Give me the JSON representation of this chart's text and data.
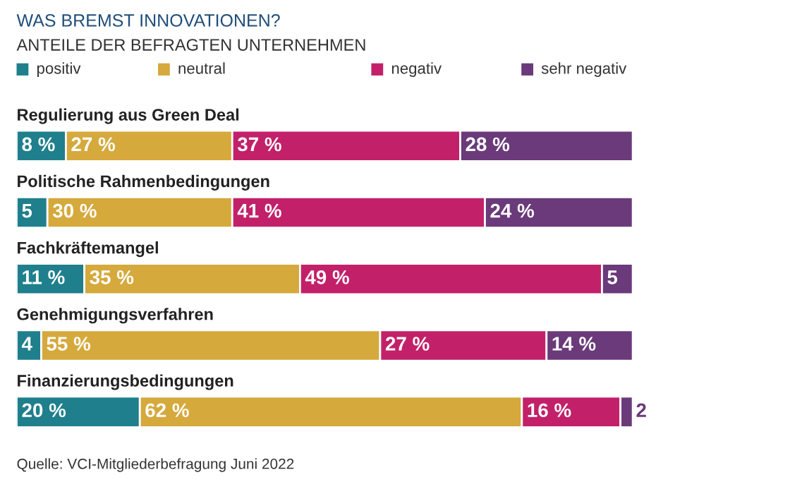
{
  "chart_data": {
    "type": "bar",
    "orientation": "horizontal",
    "stacked": true,
    "title": "WAS BREMST INNOVATIONEN?",
    "subtitle": "ANTEILE DER BEFRAGTEN UNTERNEHMEN",
    "categories": [
      "Regulierung aus Green Deal",
      "Politische Rahmenbedingungen",
      "Fachkräftemangel",
      "Genehmigungsverfahren",
      "Finanzierungsbedingungen"
    ],
    "series": [
      {
        "name": "positiv",
        "color": "#1f7f8c",
        "values": [
          8,
          5,
          11,
          4,
          20
        ],
        "value_labels": [
          "8 %",
          "5",
          "11 %",
          "4",
          "20 %"
        ]
      },
      {
        "name": "neutral",
        "color": "#d5a93c",
        "values": [
          27,
          30,
          35,
          55,
          62
        ],
        "value_labels": [
          "27 %",
          "30 %",
          "35 %",
          "55 %",
          "62 %"
        ]
      },
      {
        "name": "negativ",
        "color": "#c2216a",
        "values": [
          37,
          41,
          49,
          27,
          16
        ],
        "value_labels": [
          "37 %",
          "41 %",
          "49 %",
          "27 %",
          "16 %"
        ]
      },
      {
        "name": "sehr negativ",
        "color": "#6a3a7a",
        "values": [
          28,
          24,
          5,
          14,
          2
        ],
        "value_labels": [
          "28 %",
          "24 %",
          "5",
          "14 %",
          "2"
        ]
      }
    ],
    "legend": "top left",
    "annotations": [
      "Quelle: VCI-Mitgliederbefragung Juni 2022"
    ]
  }
}
